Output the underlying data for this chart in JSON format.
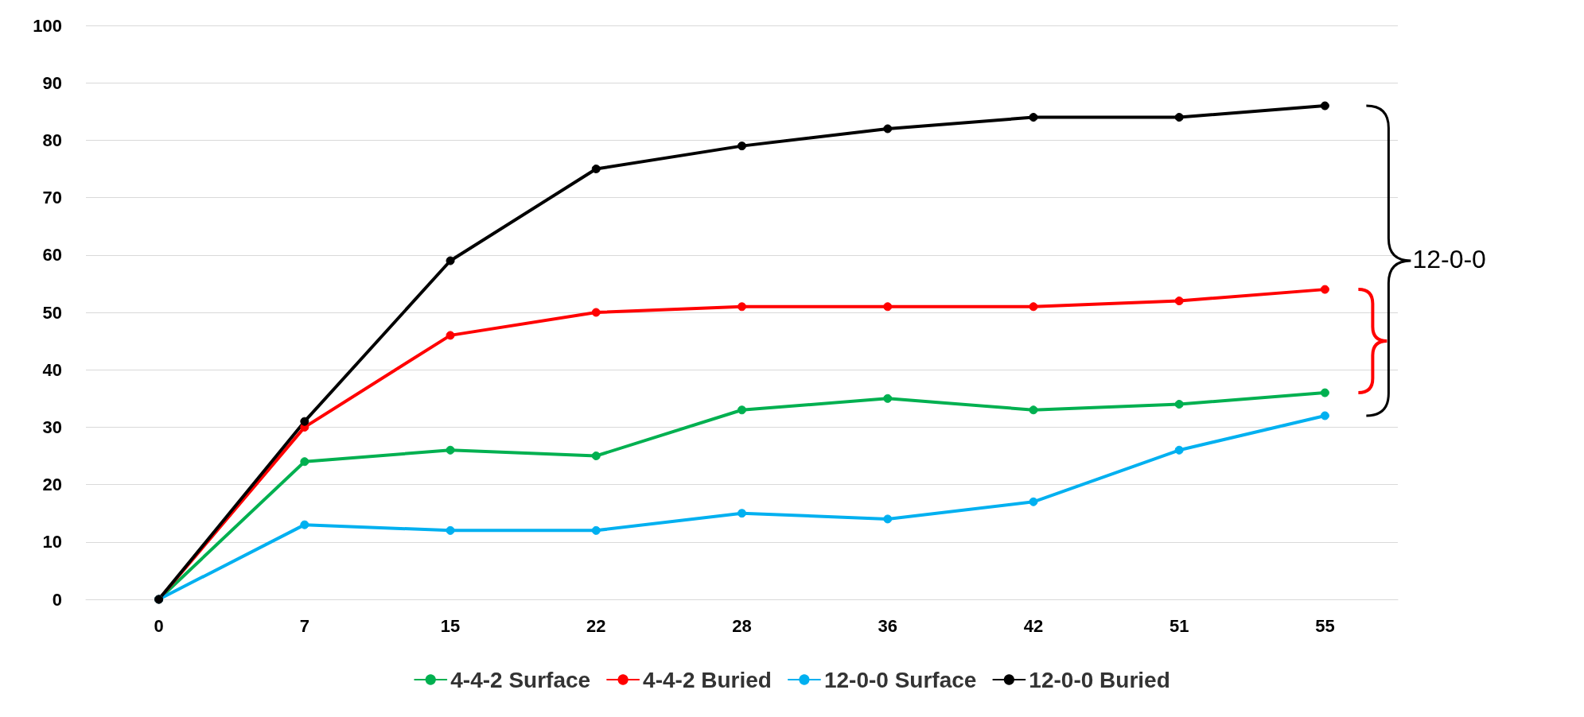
{
  "chart_data": {
    "type": "line",
    "categories": [
      "0",
      "7",
      "15",
      "22",
      "28",
      "36",
      "42",
      "51",
      "55"
    ],
    "series": [
      {
        "name": "4-4-2 Surface",
        "color": "#00b050",
        "values": [
          0,
          24,
          26,
          25,
          33,
          35,
          33,
          34,
          36
        ]
      },
      {
        "name": "4-4-2 Buried",
        "color": "#ff0000",
        "values": [
          0,
          30,
          46,
          50,
          51,
          51,
          51,
          52,
          54
        ]
      },
      {
        "name": "12-0-0 Surface",
        "color": "#00b0f0",
        "values": [
          0,
          13,
          12,
          12,
          15,
          14,
          17,
          26,
          32
        ]
      },
      {
        "name": "12-0-0 Buried",
        "color": "#000000",
        "values": [
          0,
          31,
          59,
          75,
          79,
          82,
          84,
          84,
          86
        ]
      }
    ],
    "ylim": [
      0,
      100
    ],
    "yticks": [
      0,
      10,
      20,
      30,
      40,
      50,
      60,
      70,
      80,
      90,
      100
    ],
    "grid": "y",
    "legend": "bottom",
    "marker": "circle",
    "line_style": "solid",
    "annotations": [
      "12-0-0"
    ]
  }
}
